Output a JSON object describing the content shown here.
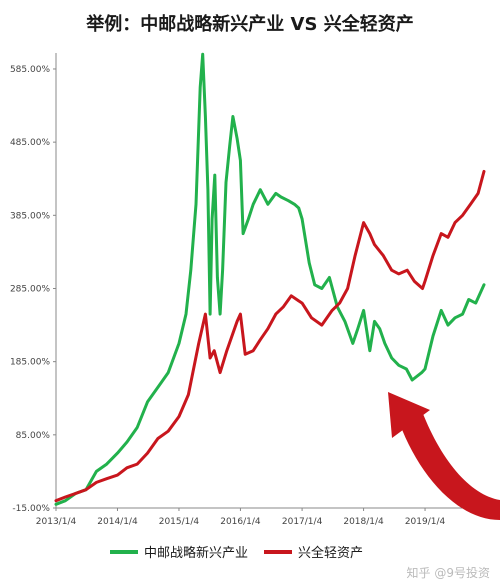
{
  "title": "举例：中邮战略新兴产业 VS 兴全轻资产",
  "watermark": "知乎 @9号投资",
  "colors": {
    "series1": "#22b14c",
    "series2": "#c8161d",
    "arrow": "#c8161d",
    "grid": "#d9d9d9"
  },
  "chart_data": {
    "type": "line",
    "title": "举例：中邮战略新兴产业 VS 兴全轻资产",
    "xlabel": "",
    "ylabel": "",
    "ylim": [
      -15,
      600
    ],
    "xlim": [
      "2013/1/4",
      "2019/12/20"
    ],
    "grid": false,
    "legend_position": "bottom",
    "y_ticks": [
      "-15.00%",
      "85.00%",
      "185.00%",
      "285.00%",
      "385.00%",
      "485.00%",
      "585.00%"
    ],
    "x_ticks": [
      "2013/1/4",
      "2014/1/4",
      "2015/1/4",
      "2016/1/4",
      "2017/1/4",
      "2018/1/4",
      "2019/1/4"
    ],
    "series": [
      {
        "name": "中邮战略新兴产业",
        "points": [
          [
            "2013/1/4",
            -10
          ],
          [
            "2013/3/1",
            -5
          ],
          [
            "2013/5/1",
            5
          ],
          [
            "2013/7/1",
            10
          ],
          [
            "2013/9/1",
            35
          ],
          [
            "2013/11/1",
            45
          ],
          [
            "2014/1/4",
            60
          ],
          [
            "2014/3/1",
            75
          ],
          [
            "2014/5/1",
            95
          ],
          [
            "2014/7/1",
            130
          ],
          [
            "2014/9/1",
            150
          ],
          [
            "2014/11/1",
            170
          ],
          [
            "2015/1/4",
            210
          ],
          [
            "2015/2/15",
            250
          ],
          [
            "2015/3/15",
            310
          ],
          [
            "2015/4/15",
            400
          ],
          [
            "2015/5/10",
            560
          ],
          [
            "2015/5/25",
            605
          ],
          [
            "2015/6/10",
            520
          ],
          [
            "2015/6/25",
            420
          ],
          [
            "2015/7/8",
            250
          ],
          [
            "2015/7/20",
            380
          ],
          [
            "2015/8/5",
            440
          ],
          [
            "2015/8/20",
            300
          ],
          [
            "2015/9/5",
            250
          ],
          [
            "2015/9/20",
            310
          ],
          [
            "2015/10/10",
            430
          ],
          [
            "2015/11/1",
            480
          ],
          [
            "2015/11/20",
            520
          ],
          [
            "2015/12/15",
            490
          ],
          [
            "2016/1/4",
            460
          ],
          [
            "2016/1/20",
            360
          ],
          [
            "2016/2/20",
            380
          ],
          [
            "2016/3/20",
            400
          ],
          [
            "2016/5/1",
            420
          ],
          [
            "2016/6/15",
            400
          ],
          [
            "2016/8/1",
            415
          ],
          [
            "2016/9/1",
            410
          ],
          [
            "2016/10/15",
            405
          ],
          [
            "2016/11/20",
            400
          ],
          [
            "2016/12/15",
            395
          ],
          [
            "2017/1/4",
            380
          ],
          [
            "2017/2/15",
            320
          ],
          [
            "2017/3/20",
            290
          ],
          [
            "2017/5/1",
            285
          ],
          [
            "2017/6/15",
            300
          ],
          [
            "2017/8/1",
            260
          ],
          [
            "2017/9/15",
            240
          ],
          [
            "2017/11/1",
            210
          ],
          [
            "2017/12/1",
            230
          ],
          [
            "2018/1/4",
            255
          ],
          [
            "2018/2/10",
            200
          ],
          [
            "2018/3/10",
            240
          ],
          [
            "2018/4/10",
            230
          ],
          [
            "2018/5/10",
            210
          ],
          [
            "2018/6/20",
            190
          ],
          [
            "2018/8/1",
            180
          ],
          [
            "2018/9/15",
            175
          ],
          [
            "2018/10/20",
            160
          ],
          [
            "2018/12/15",
            170
          ],
          [
            "2019/1/4",
            175
          ],
          [
            "2019/2/20",
            220
          ],
          [
            "2019/4/10",
            255
          ],
          [
            "2019/5/20",
            235
          ],
          [
            "2019/7/1",
            245
          ],
          [
            "2019/8/15",
            250
          ],
          [
            "2019/9/20",
            270
          ],
          [
            "2019/11/1",
            265
          ],
          [
            "2019/12/20",
            290
          ]
        ]
      },
      {
        "name": "兴全轻资产",
        "points": [
          [
            "2013/1/4",
            -5
          ],
          [
            "2013/3/1",
            0
          ],
          [
            "2013/5/1",
            5
          ],
          [
            "2013/7/1",
            10
          ],
          [
            "2013/9/1",
            20
          ],
          [
            "2013/11/1",
            25
          ],
          [
            "2014/1/4",
            30
          ],
          [
            "2014/3/1",
            40
          ],
          [
            "2014/5/1",
            45
          ],
          [
            "2014/7/1",
            60
          ],
          [
            "2014/9/1",
            80
          ],
          [
            "2014/11/1",
            90
          ],
          [
            "2015/1/4",
            110
          ],
          [
            "2015/3/1",
            140
          ],
          [
            "2015/5/1",
            210
          ],
          [
            "2015/6/10",
            250
          ],
          [
            "2015/7/8",
            190
          ],
          [
            "2015/8/1",
            200
          ],
          [
            "2015/9/5",
            170
          ],
          [
            "2015/10/15",
            200
          ],
          [
            "2015/12/15",
            240
          ],
          [
            "2016/1/4",
            250
          ],
          [
            "2016/2/1",
            195
          ],
          [
            "2016/3/20",
            200
          ],
          [
            "2016/5/1",
            215
          ],
          [
            "2016/6/15",
            230
          ],
          [
            "2016/8/1",
            250
          ],
          [
            "2016/9/15",
            260
          ],
          [
            "2016/11/1",
            275
          ],
          [
            "2016/12/15",
            268
          ],
          [
            "2017/1/4",
            265
          ],
          [
            "2017/3/1",
            245
          ],
          [
            "2017/5/1",
            235
          ],
          [
            "2017/7/1",
            255
          ],
          [
            "2017/8/15",
            265
          ],
          [
            "2017/10/1",
            285
          ],
          [
            "2017/11/15",
            330
          ],
          [
            "2018/1/4",
            375
          ],
          [
            "2018/2/10",
            360
          ],
          [
            "2018/3/10",
            345
          ],
          [
            "2018/5/1",
            330
          ],
          [
            "2018/6/20",
            310
          ],
          [
            "2018/8/1",
            305
          ],
          [
            "2018/9/20",
            310
          ],
          [
            "2018/11/1",
            295
          ],
          [
            "2018/12/20",
            285
          ],
          [
            "2019/1/4",
            295
          ],
          [
            "2019/2/20",
            330
          ],
          [
            "2019/4/10",
            360
          ],
          [
            "2019/5/20",
            355
          ],
          [
            "2019/7/1",
            375
          ],
          [
            "2019/8/15",
            385
          ],
          [
            "2019/10/1",
            400
          ],
          [
            "2019/11/15",
            415
          ],
          [
            "2019/12/20",
            445
          ]
        ]
      }
    ]
  }
}
